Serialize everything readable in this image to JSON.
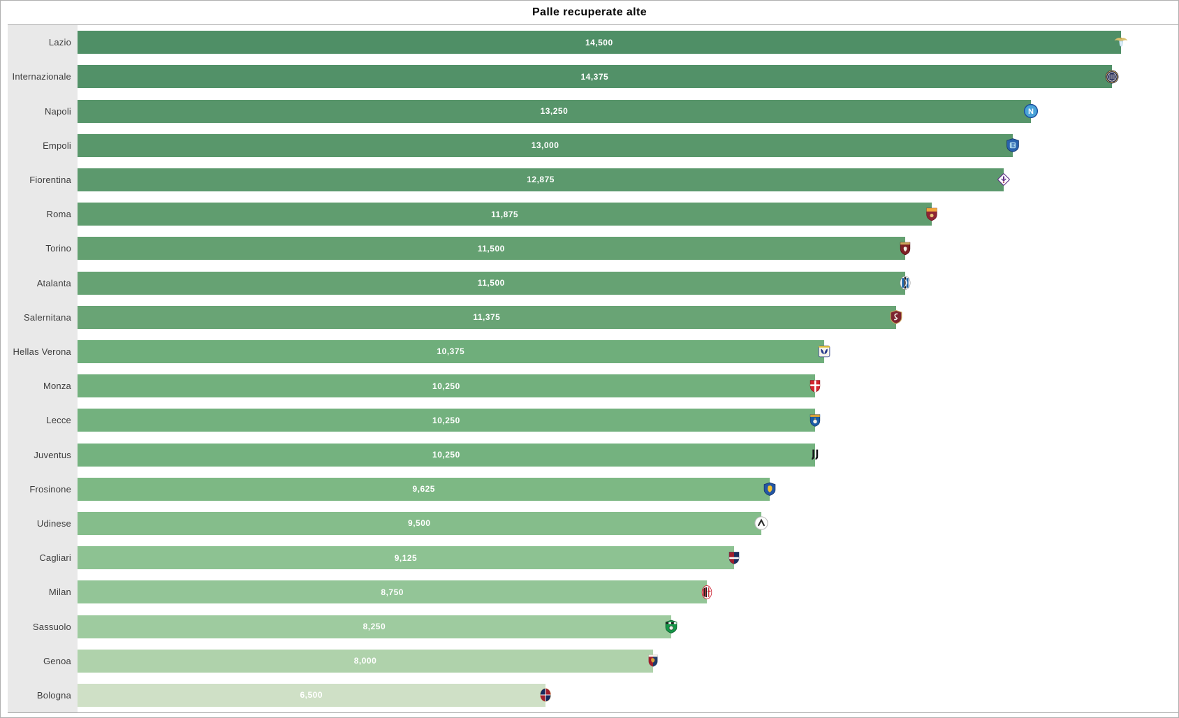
{
  "title": "Palle recuperate alte",
  "chart_data": {
    "type": "bar",
    "orientation": "horizontal",
    "title": "Palle recuperate alte",
    "legend": "none",
    "grid": "off",
    "xlim": [
      0,
      15300
    ],
    "category_panel_color": "#e9e9e9",
    "categories": [
      "Lazio",
      "Internazionale",
      "Napoli",
      "Empoli",
      "Fiorentina",
      "Roma",
      "Torino",
      "Atalanta",
      "Salernitana",
      "Hellas Verona",
      "Monza",
      "Lecce",
      "Juventus",
      "Frosinone",
      "Udinese",
      "Cagliari",
      "Milan",
      "Sassuolo",
      "Genoa",
      "Bologna"
    ],
    "values": [
      14500,
      14375,
      13250,
      13000,
      12875,
      11875,
      11500,
      11500,
      11375,
      10375,
      10250,
      10250,
      10250,
      9625,
      9500,
      9125,
      8750,
      8250,
      8000,
      6500
    ],
    "value_labels": [
      "14,500",
      "14,375",
      "13,250",
      "13,000",
      "12,875",
      "11,875",
      "11,500",
      "11,500",
      "11,375",
      "10,375",
      "10,250",
      "10,250",
      "10,250",
      "9,625",
      "9,500",
      "9,125",
      "8,750",
      "8,250",
      "8,000",
      "6,500"
    ],
    "bar_colors": [
      "#4f8f66",
      "#529168",
      "#57956a",
      "#59976b",
      "#5c996d",
      "#609d6f",
      "#64a071",
      "#66a273",
      "#69a475",
      "#6fae7b",
      "#72b07d",
      "#73b17e",
      "#74b27f",
      "#7db884",
      "#85bd8b",
      "#8dc292",
      "#93c597",
      "#9ecb9f",
      "#afd2ab",
      "#cfe0c6"
    ],
    "logos": [
      "lazio-logo",
      "internazionale-logo",
      "napoli-logo",
      "empoli-logo",
      "fiorentina-logo",
      "roma-logo",
      "torino-logo",
      "atalanta-logo",
      "salernitana-logo",
      "hellas-verona-logo",
      "monza-logo",
      "lecce-logo",
      "juventus-logo",
      "frosinone-logo",
      "udinese-logo",
      "cagliari-logo",
      "milan-logo",
      "sassuolo-logo",
      "genoa-logo",
      "bologna-logo"
    ]
  }
}
